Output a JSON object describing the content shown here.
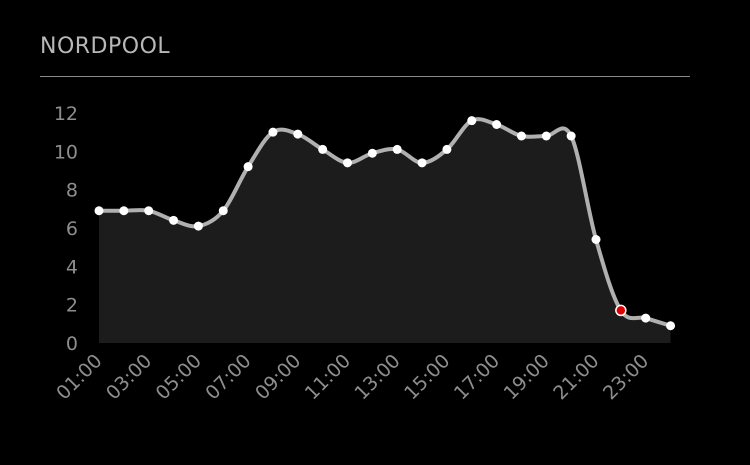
{
  "widget": {
    "title": "NORDPOOL"
  },
  "chart_data": {
    "type": "area",
    "title": "",
    "xlabel": "",
    "ylabel": "",
    "x": [
      "01:00",
      "02:00",
      "03:00",
      "04:00",
      "05:00",
      "06:00",
      "07:00",
      "08:00",
      "09:00",
      "10:00",
      "11:00",
      "12:00",
      "13:00",
      "14:00",
      "15:00",
      "16:00",
      "17:00",
      "18:00",
      "19:00",
      "20:00",
      "21:00",
      "22:00",
      "23:00",
      "24:00"
    ],
    "x_tick_labels": [
      "01:00",
      "03:00",
      "05:00",
      "07:00",
      "09:00",
      "11:00",
      "13:00",
      "15:00",
      "17:00",
      "19:00",
      "21:00",
      "23:00"
    ],
    "values": [
      6.9,
      6.9,
      6.9,
      6.4,
      6.1,
      6.9,
      9.2,
      11.0,
      10.9,
      10.1,
      9.4,
      9.9,
      10.1,
      9.4,
      10.1,
      11.6,
      11.4,
      10.8,
      10.8,
      10.8,
      5.4,
      1.7,
      1.3,
      0.9
    ],
    "y_ticks": [
      0,
      2,
      4,
      6,
      8,
      10,
      12
    ],
    "ylim": [
      0,
      12
    ],
    "highlight_index": 21,
    "colors": {
      "line": "#b0b0b0",
      "fill": "#1c1c1c",
      "point": "#ffffff",
      "highlight": "#e00000",
      "tick_text": "#8e8e8e"
    },
    "grid": false,
    "legend": "none"
  }
}
